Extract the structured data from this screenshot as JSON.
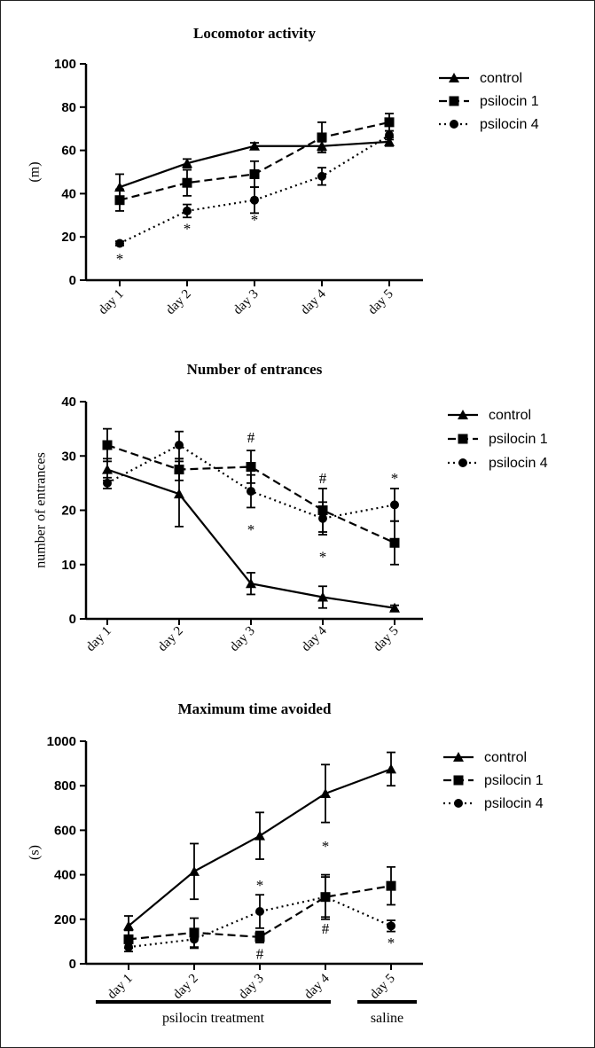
{
  "chart_data": [
    {
      "type": "line",
      "title": "Locomotor activity",
      "ylabel": "(m)",
      "xlabel": "",
      "categories": [
        "day 1",
        "day 2",
        "day 3",
        "day 4",
        "day 5"
      ],
      "ylim": [
        0,
        100
      ],
      "yticks": [
        0,
        20,
        40,
        60,
        80,
        100
      ],
      "series": [
        {
          "name": "control",
          "marker": "triangle",
          "dash": "solid",
          "values": [
            43,
            54,
            62,
            62,
            64
          ],
          "errors": [
            6,
            2,
            1.5,
            2,
            2
          ]
        },
        {
          "name": "psilocin 1",
          "marker": "square",
          "dash": "dashed",
          "values": [
            37,
            45,
            49,
            66,
            73
          ],
          "errors": [
            5,
            6,
            6,
            7,
            4
          ]
        },
        {
          "name": "psilocin 4",
          "marker": "circle",
          "dash": "dotted",
          "values": [
            17,
            32,
            37,
            48,
            67
          ],
          "errors": [
            1,
            3,
            6,
            4,
            2
          ]
        }
      ],
      "annotations": [
        {
          "category": "day 1",
          "y": 10,
          "text": "*"
        },
        {
          "category": "day 2",
          "y": 24,
          "text": "*"
        },
        {
          "category": "day 3",
          "y": 28,
          "text": "*"
        }
      ],
      "legend": "right"
    },
    {
      "type": "line",
      "title": "Number of entrances",
      "ylabel": "number of entrances",
      "xlabel": "",
      "categories": [
        "day 1",
        "day 2",
        "day 3",
        "day 4",
        "day 5"
      ],
      "ylim": [
        0,
        40
      ],
      "yticks": [
        0,
        10,
        20,
        30,
        40
      ],
      "series": [
        {
          "name": "control",
          "marker": "triangle",
          "dash": "solid",
          "values": [
            27.5,
            23,
            6.5,
            4,
            2
          ],
          "errors": [
            2,
            6,
            2,
            2,
            0.5
          ]
        },
        {
          "name": "psilocin 1",
          "marker": "square",
          "dash": "dashed",
          "values": [
            32,
            27.5,
            28,
            20,
            14
          ],
          "errors": [
            3,
            2,
            3,
            4,
            4
          ]
        },
        {
          "name": "psilocin 4",
          "marker": "circle",
          "dash": "dotted",
          "values": [
            25,
            32,
            23.5,
            18.5,
            21
          ],
          "errors": [
            1,
            2.5,
            3,
            3,
            3
          ]
        }
      ],
      "annotations": [
        {
          "category": "day 3",
          "y": 33.5,
          "text": "#"
        },
        {
          "category": "day 3",
          "y": 16.5,
          "text": "*"
        },
        {
          "category": "day 4",
          "y": 26,
          "text": "#"
        },
        {
          "category": "day 4",
          "y": 11.5,
          "text": "*"
        },
        {
          "category": "day 5",
          "y": 26,
          "text": "*"
        }
      ],
      "legend": "right"
    },
    {
      "type": "line",
      "title": "Maximum time avoided",
      "ylabel": "(s)",
      "xlabel": "",
      "categories": [
        "day 1",
        "day 2",
        "day 3",
        "day 4",
        "day 5"
      ],
      "ylim": [
        0,
        1000
      ],
      "yticks": [
        0,
        200,
        400,
        600,
        800,
        1000
      ],
      "series": [
        {
          "name": "control",
          "marker": "triangle",
          "dash": "solid",
          "values": [
            170,
            415,
            575,
            765,
            875
          ],
          "errors": [
            45,
            125,
            105,
            130,
            75
          ]
        },
        {
          "name": "psilocin 1",
          "marker": "square",
          "dash": "dashed",
          "values": [
            110,
            140,
            120,
            300,
            350
          ],
          "errors": [
            40,
            65,
            25,
            100,
            85
          ]
        },
        {
          "name": "psilocin 4",
          "marker": "circle",
          "dash": "dotted",
          "values": [
            75,
            110,
            235,
            300,
            170
          ],
          "errors": [
            20,
            40,
            75,
            90,
            25
          ]
        }
      ],
      "annotations": [
        {
          "category": "day 3",
          "y": 355,
          "text": "*"
        },
        {
          "category": "day 3",
          "y": 45,
          "text": "#"
        },
        {
          "category": "day 4",
          "y": 530,
          "text": "*"
        },
        {
          "category": "day 4",
          "y": 160,
          "text": "#"
        },
        {
          "category": "day 5",
          "y": 95,
          "text": "*"
        }
      ],
      "legend": "right",
      "groups": [
        {
          "label": "psilocin treatment",
          "from": "day 1",
          "to": "day 4"
        },
        {
          "label": "saline",
          "from": "day 5",
          "to": "day 5"
        }
      ]
    }
  ]
}
